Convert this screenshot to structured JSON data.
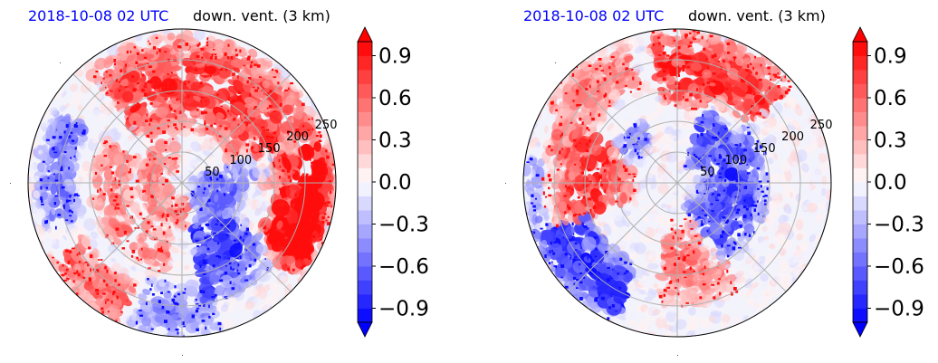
{
  "chart_data": [
    {
      "type": "heatmap",
      "projection": "polar",
      "datetime_label": "2018-10-08 02 UTC",
      "field_label": "down. vent. (3 km)",
      "radial_ticks": [
        50,
        100,
        150,
        200,
        250
      ],
      "radial_max": 250,
      "angular_gridlines_deg": [
        0,
        45,
        90,
        135,
        180,
        225,
        270,
        315
      ],
      "grid": true,
      "colorbar": {
        "ticks": [
          "0.9",
          "0.6",
          "0.3",
          "0.0",
          "−0.3",
          "−0.6",
          "−0.9"
        ],
        "tick_values": [
          0.9,
          0.6,
          0.3,
          0.0,
          -0.3,
          -0.6,
          -0.9
        ],
        "vmin": -1.0,
        "vmax": 1.0,
        "levels": 20,
        "extend": "both",
        "colormap": "bwr",
        "placement": "right"
      },
      "features": [
        {
          "kind": "band",
          "sign": 1,
          "amp": 0.85,
          "r1": 85,
          "r2": 240,
          "a1": -35,
          "a2": 130
        },
        {
          "kind": "band",
          "sign": 1,
          "amp": 0.8,
          "r1": 150,
          "r2": 250,
          "a1": -40,
          "a2": 15
        },
        {
          "kind": "band",
          "sign": 1,
          "amp": 0.6,
          "r1": 20,
          "r2": 75,
          "a1": 100,
          "a2": 300
        },
        {
          "kind": "band",
          "sign": 1,
          "amp": 0.55,
          "r1": 80,
          "r2": 150,
          "a1": 150,
          "a2": 260
        },
        {
          "kind": "band",
          "sign": -1,
          "amp": 0.8,
          "r1": 20,
          "r2": 200,
          "a1": -80,
          "a2": 20
        },
        {
          "kind": "band",
          "sign": -1,
          "amp": 0.6,
          "r1": 170,
          "r2": 235,
          "a1": 150,
          "a2": 200
        },
        {
          "kind": "band",
          "sign": 1,
          "amp": 0.7,
          "r1": 180,
          "r2": 250,
          "a1": 210,
          "a2": 245
        },
        {
          "kind": "band",
          "sign": -1,
          "amp": 0.5,
          "r1": 160,
          "r2": 250,
          "a1": 250,
          "a2": 285
        }
      ]
    },
    {
      "type": "heatmap",
      "projection": "polar",
      "datetime_label": "2018-10-08 02 UTC",
      "field_label": "down. vent. (3 km)",
      "radial_ticks": [
        50,
        100,
        150,
        200,
        250
      ],
      "radial_max": 250,
      "angular_gridlines_deg": [
        0,
        45,
        90,
        135,
        180,
        225,
        270,
        315
      ],
      "grid": true,
      "colorbar": {
        "ticks": [
          "0.9",
          "0.6",
          "0.3",
          "0.0",
          "−0.3",
          "−0.6",
          "−0.9"
        ],
        "tick_values": [
          0.9,
          0.6,
          0.3,
          0.0,
          -0.3,
          -0.6,
          -0.9
        ],
        "vmin": -1.0,
        "vmax": 1.0,
        "levels": 20,
        "extend": "both",
        "colormap": "bwr",
        "placement": "right"
      },
      "features": [
        {
          "kind": "band",
          "sign": 1,
          "amp": 0.9,
          "r1": 120,
          "r2": 250,
          "a1": 40,
          "a2": 100
        },
        {
          "kind": "band",
          "sign": 1,
          "amp": 0.85,
          "r1": 70,
          "r2": 220,
          "a1": 150,
          "a2": 200
        },
        {
          "kind": "band",
          "sign": 1,
          "amp": 0.55,
          "r1": 160,
          "r2": 250,
          "a1": 110,
          "a2": 150
        },
        {
          "kind": "band",
          "sign": -1,
          "amp": 0.8,
          "r1": 30,
          "r2": 150,
          "a1": -70,
          "a2": 70
        },
        {
          "kind": "band",
          "sign": -1,
          "amp": 0.95,
          "r1": 150,
          "r2": 250,
          "a1": 200,
          "a2": 245
        },
        {
          "kind": "band",
          "sign": -1,
          "amp": 0.6,
          "r1": 70,
          "r2": 120,
          "a1": 120,
          "a2": 160
        },
        {
          "kind": "band",
          "sign": 1,
          "amp": 0.6,
          "r1": 60,
          "r2": 200,
          "a1": -100,
          "a2": -60
        },
        {
          "kind": "band",
          "sign": -1,
          "amp": 0.4,
          "r1": 200,
          "r2": 250,
          "a1": 170,
          "a2": 200
        }
      ]
    }
  ]
}
